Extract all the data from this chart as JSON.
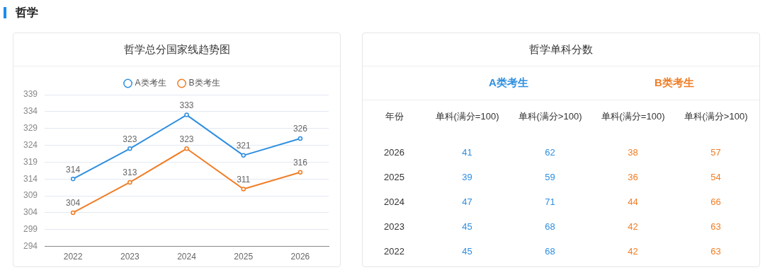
{
  "chart_data": [
    {
      "type": "line",
      "title": "哲学总分国家线趋势图",
      "annotations": [
        "哲学"
      ],
      "categories": [
        "2022",
        "2023",
        "2024",
        "2025",
        "2026"
      ],
      "series": [
        {
          "name": "A类考生",
          "color": "#2f8fe0",
          "values": [
            314,
            323,
            333,
            321,
            326
          ]
        },
        {
          "name": "B类考生",
          "color": "#f07d25",
          "values": [
            304,
            313,
            323,
            311,
            316
          ]
        }
      ],
      "ylim": [
        294,
        339
      ],
      "yticks": [
        294,
        299,
        304,
        309,
        314,
        319,
        324,
        329,
        334,
        339
      ],
      "grid": "y",
      "legend": "top",
      "marker": "circle",
      "data_labels": true
    },
    {
      "type": "heatmap",
      "title": "哲学单科分数",
      "ylabel": "年份",
      "annotations": [
        "A类考生",
        "B类考生"
      ],
      "categories": [
        "单科(满分=100)",
        "单科(满分>100)",
        "单科(满分=100)",
        "单科(满分>100)"
      ],
      "colors": [
        "#2f8fe0",
        "#2f8fe0",
        "#f07d25",
        "#f07d25"
      ],
      "y_categories": [
        "2026",
        "2025",
        "2024",
        "2023",
        "2022"
      ],
      "cells": [
        [
          41,
          62,
          38,
          57
        ],
        [
          39,
          59,
          36,
          54
        ],
        [
          47,
          71,
          44,
          66
        ],
        [
          45,
          68,
          42,
          63
        ],
        [
          45,
          68,
          42,
          63
        ]
      ],
      "data_labels": true
    }
  ]
}
